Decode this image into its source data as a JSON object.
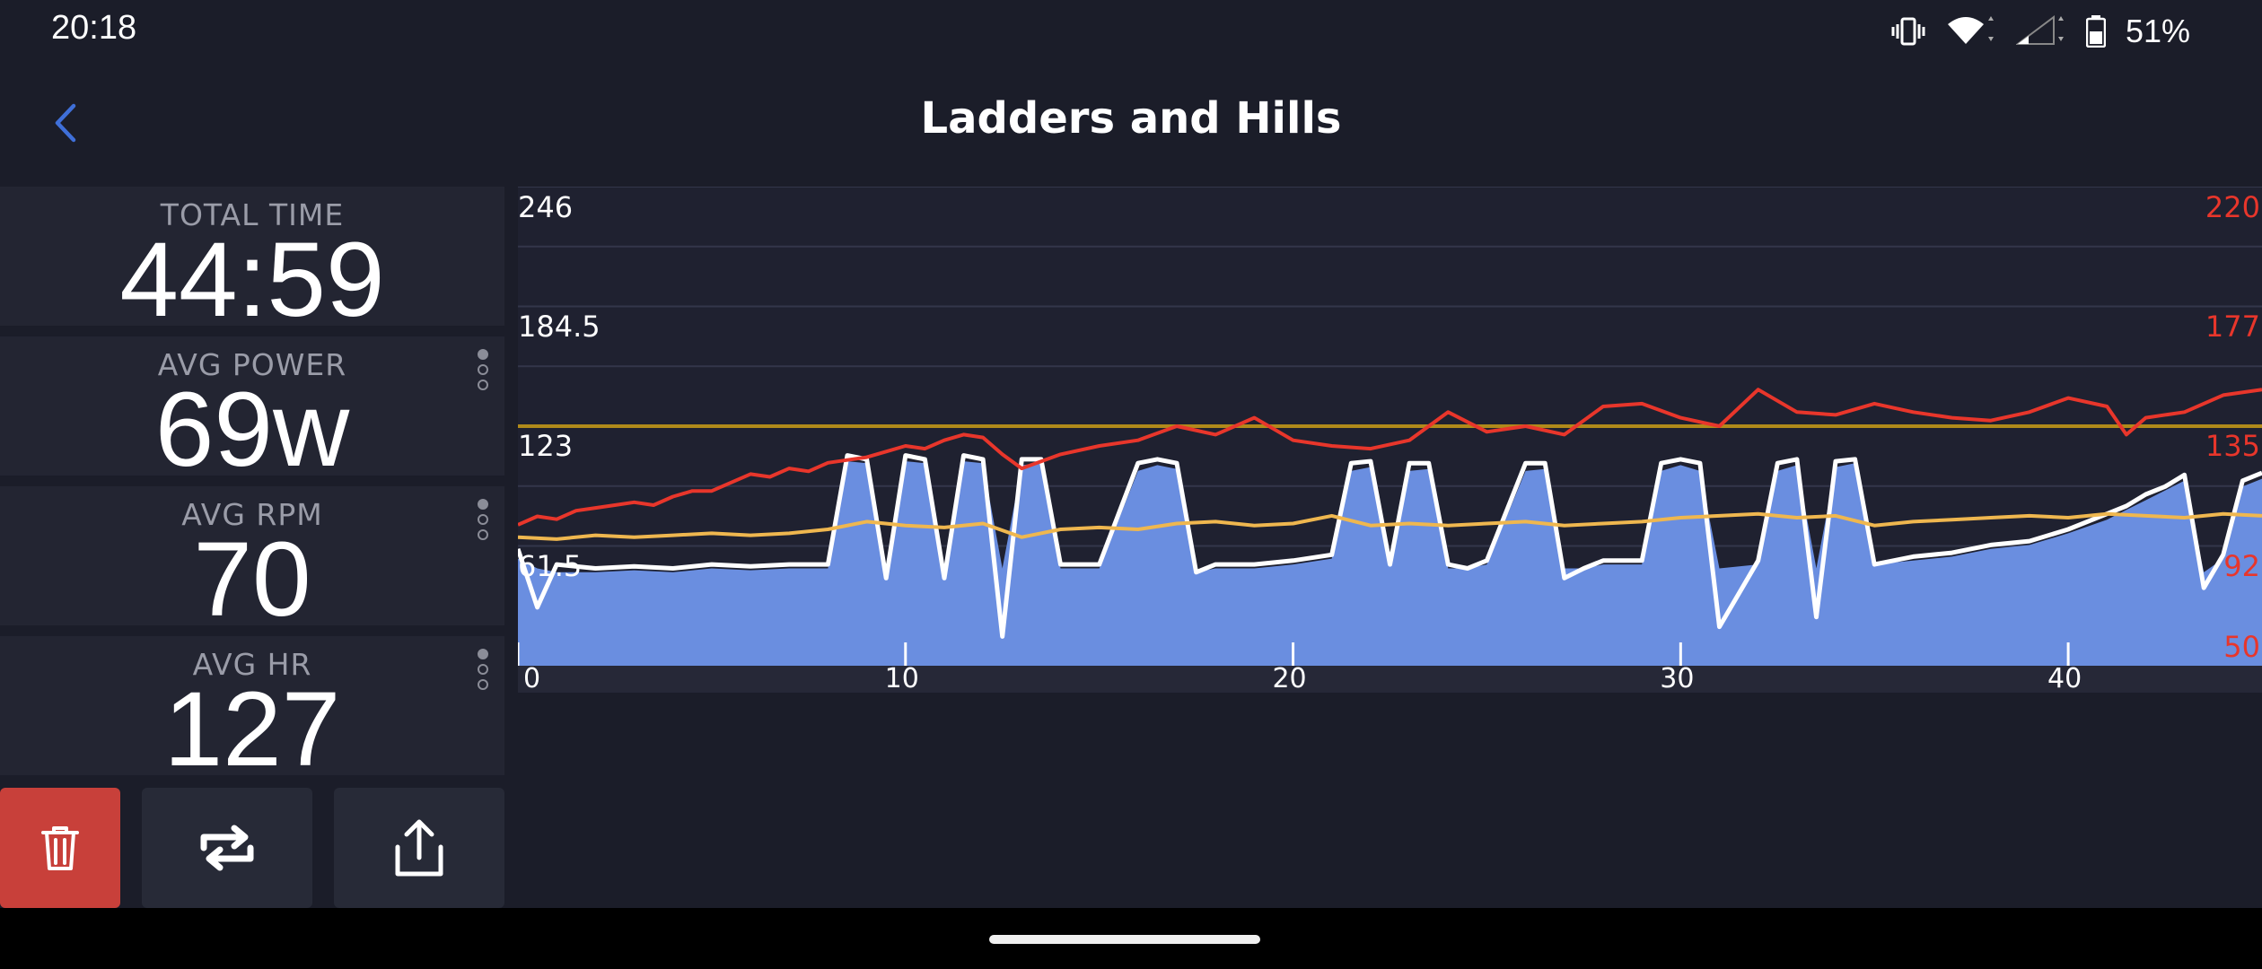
{
  "status_bar": {
    "time": "20:18",
    "battery_percent": "51%",
    "icons": [
      "vibrate-icon",
      "wifi-icon",
      "signal-icon",
      "battery-icon"
    ]
  },
  "header": {
    "title": "Ladders and Hills",
    "back_icon": "chevron-left-icon",
    "accent_color": "#3f6fd8"
  },
  "stats": [
    {
      "label": "TOTAL TIME",
      "value": "44:59"
    },
    {
      "label": "AVG POWER",
      "value": "69w"
    },
    {
      "label": "AVG RPM",
      "value": "70"
    },
    {
      "label": "AVG HR",
      "value": "127"
    }
  ],
  "actions": [
    {
      "name": "delete",
      "icon": "trash-icon",
      "color": "#c8403a"
    },
    {
      "name": "repeat",
      "icon": "repeat-icon"
    },
    {
      "name": "share",
      "icon": "share-icon"
    }
  ],
  "chart_data": {
    "type": "line",
    "x_ticks": [
      "0",
      "10",
      "20",
      "30",
      "40"
    ],
    "xlim": [
      0,
      45
    ],
    "left_axis": {
      "ticks": [
        "246",
        "184.5",
        "123",
        "61.5"
      ],
      "ylim": [
        0,
        246
      ]
    },
    "right_axis": {
      "ticks": [
        "220",
        "177",
        "135",
        "92",
        "50"
      ],
      "ylim": [
        50,
        220
      ],
      "color": "#e8362b"
    },
    "threshold": {
      "value": 135,
      "color": "#b08a1a"
    },
    "grid": true,
    "series": [
      {
        "color": "#6a8ee0",
        "x": [
          0,
          0.5,
          1,
          2,
          3,
          4,
          5,
          6,
          7,
          8,
          8.5,
          9,
          9.5,
          10,
          10.5,
          11,
          11.5,
          12,
          12.5,
          13,
          13.5,
          14,
          15,
          16,
          16.5,
          17,
          17.5,
          18,
          19,
          20,
          21,
          21.5,
          22,
          22.5,
          23,
          23.5,
          24,
          24.5,
          25,
          26,
          26.5,
          27,
          27.5,
          28,
          29,
          29.5,
          30,
          30.5,
          31,
          32,
          32.5,
          33,
          33.5,
          34,
          34.5,
          35,
          36,
          37,
          38,
          39,
          40,
          41,
          41.5,
          42,
          42.5,
          43,
          43.5,
          44,
          44.5,
          45
        ],
        "values": [
          55,
          50,
          48,
          48,
          49,
          48,
          50,
          49,
          50,
          50,
          105,
          104,
          48,
          105,
          104,
          50,
          105,
          104,
          50,
          103,
          104,
          50,
          50,
          100,
          103,
          101,
          48,
          50,
          50,
          52,
          55,
          100,
          102,
          52,
          100,
          101,
          50,
          50,
          52,
          100,
          101,
          50,
          50,
          52,
          52,
          100,
          103,
          100,
          50,
          52,
          100,
          103,
          50,
          102,
          104,
          52,
          54,
          56,
          60,
          62,
          68,
          75,
          80,
          85,
          90,
          95,
          48,
          55,
          92,
          96
        ]
      },
      {
        "color": "#ffffff",
        "x": [
          0,
          0.5,
          1,
          2,
          3,
          4,
          5,
          6,
          7,
          8,
          8.5,
          9,
          9.5,
          10,
          10.5,
          11,
          11.5,
          12,
          12.5,
          13,
          13.5,
          14,
          15,
          16,
          16.5,
          17,
          17.5,
          18,
          19,
          20,
          21,
          21.5,
          22,
          22.5,
          23,
          23.5,
          24,
          24.5,
          25,
          26,
          26.5,
          27,
          27.5,
          28,
          29,
          29.5,
          30,
          30.5,
          31,
          32,
          32.5,
          33,
          33.5,
          34,
          34.5,
          35,
          36,
          37,
          38,
          39,
          40,
          41,
          41.5,
          42,
          42.5,
          43,
          43.5,
          44,
          44.5,
          45
        ],
        "values": [
          60,
          30,
          52,
          50,
          51,
          50,
          52,
          51,
          52,
          52,
          108,
          106,
          45,
          108,
          106,
          45,
          108,
          106,
          15,
          106,
          106,
          52,
          52,
          104,
          106,
          104,
          48,
          52,
          52,
          54,
          57,
          104,
          105,
          52,
          104,
          104,
          52,
          50,
          54,
          104,
          104,
          45,
          50,
          54,
          54,
          104,
          106,
          104,
          20,
          54,
          104,
          106,
          25,
          105,
          106,
          52,
          56,
          58,
          62,
          64,
          70,
          78,
          82,
          88,
          92,
          98,
          40,
          57,
          95,
          99
        ]
      },
      {
        "color": "#efb74f",
        "x": [
          0,
          1,
          2,
          3,
          4,
          5,
          6,
          7,
          8,
          9,
          10,
          11,
          12,
          13,
          14,
          15,
          16,
          17,
          18,
          19,
          20,
          21,
          22,
          23,
          24,
          25,
          26,
          27,
          28,
          29,
          30,
          31,
          32,
          33,
          34,
          35,
          36,
          37,
          38,
          39,
          40,
          41,
          42,
          43,
          44,
          45
        ],
        "values": [
          66,
          65,
          67,
          66,
          67,
          68,
          67,
          68,
          70,
          74,
          72,
          71,
          73,
          66,
          70,
          71,
          70,
          73,
          74,
          72,
          73,
          77,
          72,
          73,
          72,
          73,
          74,
          72,
          73,
          74,
          76,
          77,
          78,
          76,
          77,
          72,
          74,
          75,
          76,
          77,
          76,
          78,
          77,
          76,
          78,
          77
        ]
      },
      {
        "color": "#e8362b",
        "axis": "right",
        "x": [
          0,
          0.5,
          1,
          1.5,
          2,
          2.5,
          3,
          3.5,
          4,
          4.5,
          5,
          5.5,
          6,
          6.5,
          7,
          7.5,
          8,
          8.5,
          9,
          9.5,
          10,
          10.5,
          11,
          11.5,
          12,
          12.5,
          13,
          14,
          15,
          16,
          17,
          18,
          19,
          20,
          21,
          22,
          23,
          24,
          25,
          26,
          27,
          28,
          29,
          30,
          31,
          32,
          33,
          34,
          35,
          36,
          37,
          38,
          39,
          40,
          41,
          41.5,
          42,
          43,
          44,
          45
        ],
        "values": [
          100,
          103,
          102,
          105,
          106,
          107,
          108,
          107,
          110,
          112,
          112,
          115,
          118,
          117,
          120,
          119,
          122,
          123,
          124,
          126,
          128,
          127,
          130,
          132,
          131,
          125,
          120,
          125,
          128,
          130,
          135,
          132,
          138,
          130,
          128,
          127,
          130,
          140,
          133,
          135,
          132,
          142,
          143,
          138,
          135,
          148,
          140,
          139,
          143,
          140,
          138,
          137,
          140,
          145,
          142,
          132,
          138,
          140,
          146,
          148
        ]
      }
    ]
  }
}
